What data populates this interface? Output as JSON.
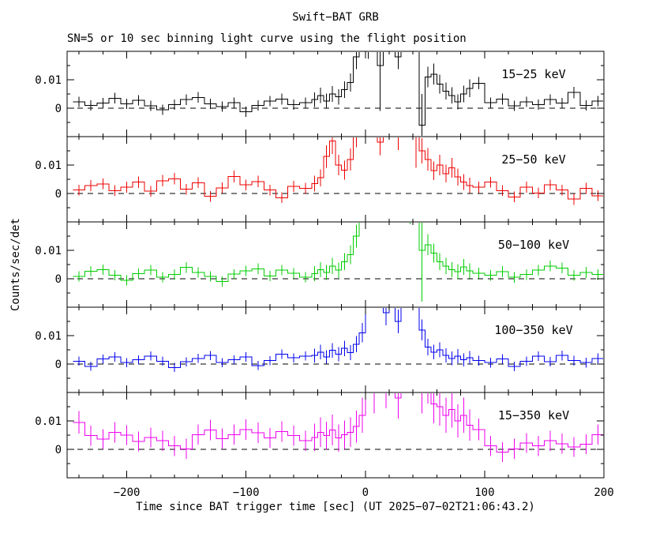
{
  "chart_data": {
    "type": "line",
    "style": "step-histogram-with-vertical-error-bars",
    "layout": "5 stacked panels sharing x axis",
    "title": "Swift−BAT GRB",
    "subtitle": "SN=5 or 10 sec binning light curve using the flight position",
    "xlabel": "Time since BAT trigger time [sec] (UT 2025−07−02T21:06:43.2)",
    "ylabel": "Counts/sec/det",
    "trigger_time_utc": "2025−07−02T21:06:43.2",
    "xlim": [
      -250,
      200
    ],
    "panel_ylim": [
      -0.01,
      0.02
    ],
    "grid": false,
    "x_major_ticks": [
      -200,
      -100,
      0,
      100,
      200
    ],
    "x_major_tick_labels": [
      "−200",
      "−100",
      "0",
      "100",
      "200"
    ],
    "x_minor_tick_step": 20,
    "y_major_ticks": [
      0,
      0.01
    ],
    "y_major_tick_labels": [
      "0",
      "0.01"
    ],
    "y_minor_ticks": [
      -0.005,
      0.005,
      0.015
    ],
    "zero_line": {
      "y": 0,
      "style": "dashed",
      "color": "#000000"
    },
    "bin_edges": [
      -245,
      -235,
      -225,
      -215,
      -205,
      -195,
      -185,
      -175,
      -165,
      -155,
      -145,
      -135,
      -125,
      -115,
      -105,
      -95,
      -85,
      -75,
      -65,
      -55,
      -45,
      -40,
      -35,
      -30,
      -25,
      -20,
      -15,
      -10,
      -5,
      0,
      5,
      10,
      15,
      20,
      25,
      30,
      35,
      40,
      45,
      50,
      55,
      60,
      65,
      70,
      75,
      80,
      85,
      90,
      100,
      110,
      120,
      130,
      140,
      150,
      160,
      170,
      180,
      190,
      200
    ],
    "series": [
      {
        "name": "15−25 keV",
        "color": "#000000",
        "rate": [
          0.0022,
          0.001,
          0.0018,
          0.0035,
          0.0015,
          0.0028,
          0.0008,
          -0.0005,
          0.0012,
          0.003,
          0.0038,
          0.0015,
          0.0005,
          0.002,
          -0.0012,
          0.001,
          0.0025,
          0.0032,
          0.0012,
          0.002,
          0.003,
          0.0045,
          0.0025,
          0.005,
          0.004,
          0.0065,
          0.009,
          0.018,
          0.028,
          0.022,
          0.035,
          0.015,
          0.03,
          0.042,
          0.018,
          0.038,
          0.045,
          0.026,
          -0.006,
          0.011,
          0.012,
          0.0085,
          0.006,
          0.0045,
          0.0022,
          0.005,
          0.007,
          0.0088,
          0.002,
          0.0032,
          0.0008,
          0.0022,
          0.0012,
          0.003,
          0.0018,
          0.0055,
          0.001,
          0.0025
        ],
        "err": [
          0.0018,
          0.0018,
          0.0018,
          0.0019,
          0.0018,
          0.0018,
          0.0018,
          0.0018,
          0.0018,
          0.0019,
          0.0019,
          0.0018,
          0.0018,
          0.0018,
          0.0018,
          0.0018,
          0.0018,
          0.0019,
          0.0018,
          0.0018,
          0.0026,
          0.0027,
          0.0026,
          0.0028,
          0.0027,
          0.0029,
          0.0032,
          0.0042,
          0.0052,
          0.0047,
          0.006,
          0.016,
          0.0055,
          0.0065,
          0.0043,
          0.0062,
          0.0068,
          0.005,
          0.011,
          0.0036,
          0.0037,
          0.0033,
          0.003,
          0.0029,
          0.0026,
          0.0029,
          0.0031,
          0.0022,
          0.0018,
          0.0019,
          0.0018,
          0.0018,
          0.0018,
          0.0019,
          0.0018,
          0.002,
          0.0018,
          0.0018
        ]
      },
      {
        "name": "25−50 keV",
        "color": "#ee0000",
        "rate": [
          0.0012,
          0.0028,
          0.0034,
          0.001,
          0.0022,
          0.004,
          0.0008,
          0.0045,
          0.0052,
          0.0015,
          0.0038,
          -0.001,
          0.002,
          0.006,
          0.003,
          0.0042,
          0.0012,
          -0.0015,
          0.0025,
          0.0018,
          0.0035,
          0.0055,
          0.013,
          0.0185,
          0.01,
          0.0082,
          0.012,
          0.021,
          0.032,
          0.025,
          0.04,
          0.018,
          0.034,
          0.046,
          0.02,
          0.042,
          0.035,
          0.028,
          0.015,
          0.012,
          0.008,
          0.01,
          0.007,
          0.009,
          0.0058,
          0.004,
          0.0028,
          0.0022,
          0.004,
          0.001,
          -0.0012,
          0.0022,
          0.0002,
          0.003,
          0.0012,
          -0.002,
          0.0018,
          -0.0008
        ],
        "err": [
          0.0019,
          0.0019,
          0.0019,
          0.0019,
          0.0019,
          0.002,
          0.0019,
          0.002,
          0.002,
          0.0019,
          0.0019,
          0.0019,
          0.0019,
          0.0021,
          0.0019,
          0.002,
          0.0019,
          0.0019,
          0.0019,
          0.0019,
          0.0028,
          0.003,
          0.004,
          0.0046,
          0.0036,
          0.0033,
          0.0039,
          0.0048,
          0.0058,
          0.0051,
          0.0066,
          0.0045,
          0.0061,
          0.007,
          0.0047,
          0.0067,
          0.0061,
          0.019,
          0.0045,
          0.004,
          0.0033,
          0.0036,
          0.0031,
          0.0035,
          0.003,
          0.0028,
          0.0027,
          0.002,
          0.0019,
          0.0019,
          0.0019,
          0.0019,
          0.0019,
          0.0019,
          0.0019,
          0.002,
          0.0019,
          0.0019
        ]
      },
      {
        "name": "50−100 keV",
        "color": "#00cc00",
        "rate": [
          0.0008,
          0.0026,
          0.0032,
          0.0012,
          -0.0006,
          0.0018,
          0.003,
          0.0005,
          0.0015,
          0.004,
          0.0022,
          0.0008,
          -0.001,
          0.0016,
          0.0028,
          0.0035,
          0.001,
          0.003,
          0.002,
          0.0005,
          0.0018,
          0.0032,
          0.0022,
          0.0045,
          0.003,
          0.006,
          0.0085,
          0.015,
          0.026,
          0.048,
          0.03,
          0.052,
          0.026,
          0.044,
          0.035,
          0.05,
          0.024,
          0.038,
          0.01,
          0.012,
          0.009,
          0.006,
          0.0045,
          0.0032,
          0.0025,
          0.0042,
          0.0028,
          0.002,
          0.0012,
          0.0025,
          0.0005,
          0.0015,
          0.003,
          0.0045,
          0.0038,
          0.0012,
          0.0022,
          0.0015
        ],
        "err": [
          0.0018,
          0.0018,
          0.0018,
          0.0018,
          0.0018,
          0.0018,
          0.0018,
          0.0018,
          0.0018,
          0.0019,
          0.0018,
          0.0018,
          0.0018,
          0.0018,
          0.0018,
          0.0019,
          0.0018,
          0.0018,
          0.0018,
          0.0018,
          0.0026,
          0.0027,
          0.0026,
          0.0028,
          0.0027,
          0.003,
          0.0033,
          0.004,
          0.005,
          0.007,
          0.0056,
          0.0073,
          0.0052,
          0.0067,
          0.006,
          0.0071,
          0.0049,
          0.0062,
          0.018,
          0.0037,
          0.0033,
          0.003,
          0.0028,
          0.0026,
          0.0026,
          0.0028,
          0.0026,
          0.0019,
          0.0019,
          0.0019,
          0.0019,
          0.0019,
          0.0019,
          0.0019,
          0.0019,
          0.0019,
          0.0019,
          0.0019
        ]
      },
      {
        "name": "100−350 keV",
        "color": "#0000ee",
        "rate": [
          0.001,
          -0.0008,
          0.0018,
          0.0025,
          0.0005,
          0.0015,
          0.0028,
          0.001,
          -0.0012,
          0.0008,
          0.002,
          0.003,
          0.0005,
          0.0015,
          0.0025,
          -0.0005,
          0.0012,
          0.0035,
          0.0022,
          0.0028,
          0.003,
          0.0042,
          0.0025,
          0.0048,
          0.0035,
          0.0055,
          0.004,
          0.007,
          0.011,
          0.05,
          0.032,
          0.056,
          0.018,
          0.026,
          0.015,
          0.048,
          0.054,
          0.03,
          0.012,
          0.006,
          0.0042,
          0.005,
          0.003,
          0.002,
          0.0028,
          0.0015,
          0.0022,
          0.0012,
          0.0005,
          0.0018,
          -0.0008,
          0.001,
          0.0028,
          0.0008,
          0.003,
          0.0012,
          0.0005,
          0.002
        ],
        "err": [
          0.0016,
          0.0016,
          0.0016,
          0.0016,
          0.0016,
          0.0016,
          0.0016,
          0.0016,
          0.0016,
          0.0016,
          0.0016,
          0.0016,
          0.0016,
          0.0016,
          0.0016,
          0.0016,
          0.0016,
          0.0017,
          0.0016,
          0.0016,
          0.0024,
          0.0026,
          0.0024,
          0.0026,
          0.0025,
          0.0027,
          0.0026,
          0.0029,
          0.0034,
          0.0072,
          0.012,
          0.0076,
          0.0044,
          0.0052,
          0.0041,
          0.007,
          0.013,
          0.0056,
          0.0037,
          0.0029,
          0.0026,
          0.0027,
          0.0025,
          0.0024,
          0.0025,
          0.0023,
          0.0024,
          0.0017,
          0.0017,
          0.0017,
          0.0017,
          0.0017,
          0.0017,
          0.0017,
          0.0017,
          0.0017,
          0.0017,
          0.0017
        ]
      },
      {
        "name": "15−350 keV",
        "color": "#ee00ee",
        "rate": [
          0.0095,
          0.0048,
          0.0036,
          0.006,
          0.005,
          0.0028,
          0.0042,
          0.003,
          0.0012,
          0.0002,
          0.0052,
          0.0068,
          0.0038,
          0.0052,
          0.007,
          0.0058,
          0.004,
          0.0062,
          0.0048,
          0.003,
          0.0042,
          0.006,
          0.0048,
          0.0068,
          0.004,
          0.0052,
          0.006,
          0.008,
          0.012,
          0.03,
          0.02,
          0.034,
          0.022,
          0.04,
          0.018,
          0.036,
          0.042,
          0.028,
          0.02,
          0.024,
          0.016,
          0.015,
          0.012,
          0.014,
          0.01,
          0.012,
          0.0085,
          0.007,
          0.0012,
          -0.001,
          0.0002,
          0.0022,
          0.0012,
          0.003,
          0.002,
          0.0008,
          0.0018,
          0.0052
        ],
        "err": [
          0.004,
          0.0035,
          0.0035,
          0.0036,
          0.0035,
          0.0035,
          0.0035,
          0.0035,
          0.0035,
          0.0035,
          0.0036,
          0.0036,
          0.0035,
          0.0036,
          0.0036,
          0.0036,
          0.0035,
          0.0036,
          0.0035,
          0.0035,
          0.0048,
          0.0052,
          0.0049,
          0.0054,
          0.0048,
          0.005,
          0.0052,
          0.0056,
          0.0062,
          0.0085,
          0.0074,
          0.0089,
          0.0076,
          0.0096,
          0.0072,
          0.0092,
          0.0097,
          0.0083,
          0.0074,
          0.0079,
          0.0068,
          0.0066,
          0.0062,
          0.0064,
          0.0058,
          0.0062,
          0.0055,
          0.0038,
          0.0035,
          0.0035,
          0.0035,
          0.0035,
          0.0035,
          0.0035,
          0.0035,
          0.0035,
          0.0035,
          0.0036
        ]
      }
    ]
  }
}
